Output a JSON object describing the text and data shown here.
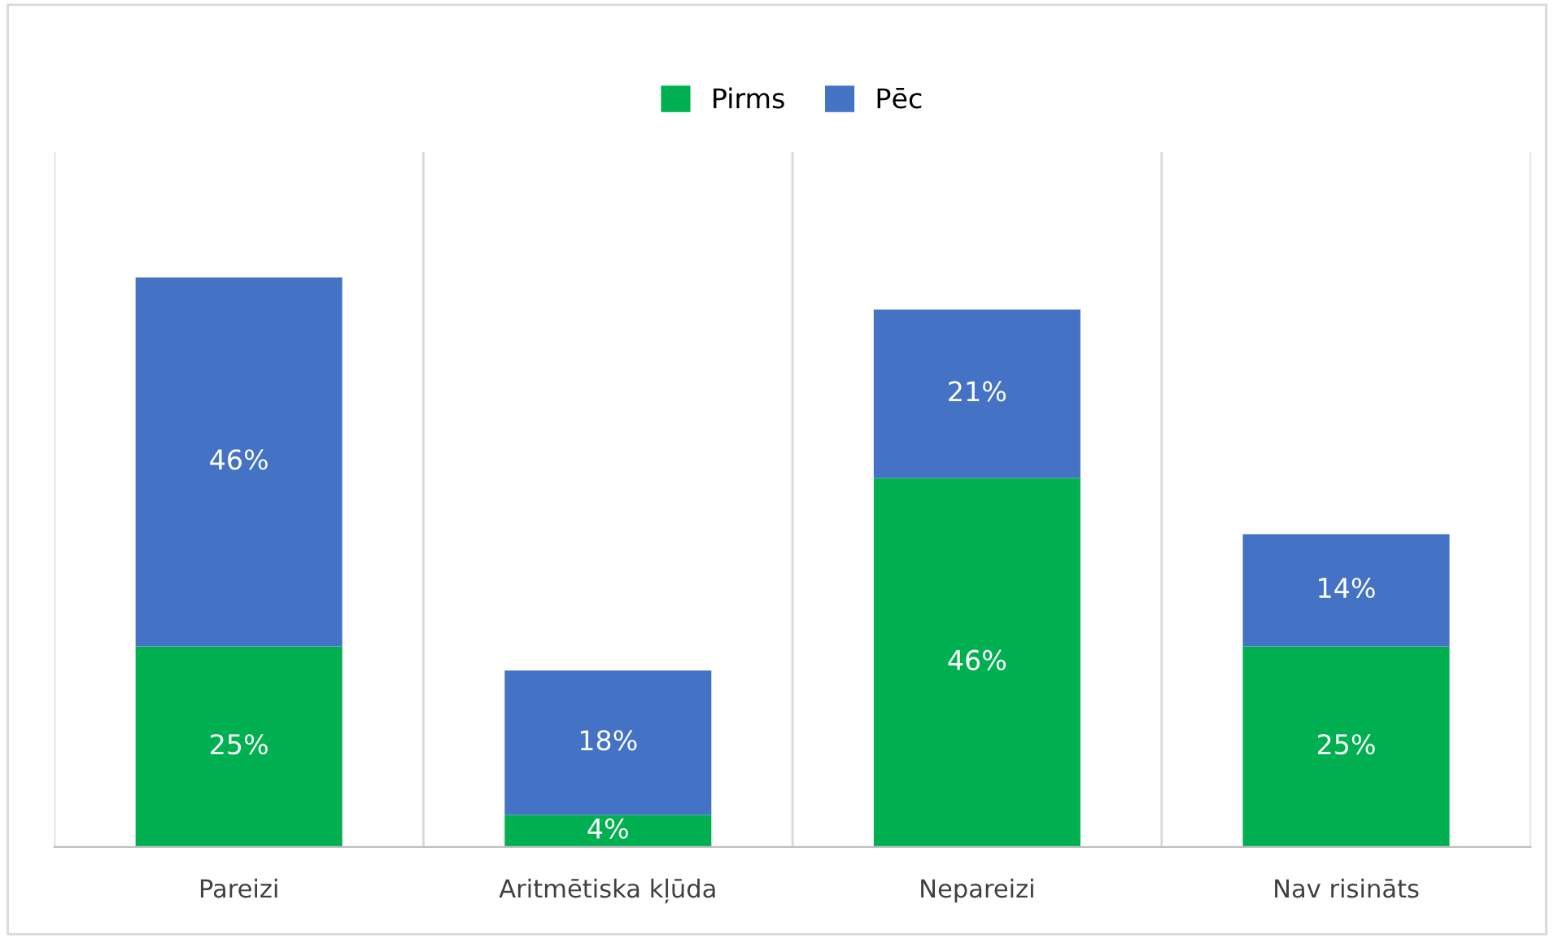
{
  "chart_data": {
    "type": "bar",
    "stacked": true,
    "legend": "top",
    "grid": "x",
    "categories": [
      "Pareizi",
      "Aritmētiska kļūda",
      "Nepareizi",
      "Nav risināts"
    ],
    "series": [
      {
        "name": "Pirms",
        "color": "#00b050",
        "values": [
          25,
          4,
          46,
          25
        ],
        "value_labels": [
          "25%",
          "4%",
          "46%",
          "25%"
        ]
      },
      {
        "name": "Pēc",
        "color": "#4472c4",
        "values": [
          46,
          18,
          21,
          14
        ],
        "value_labels": [
          "46%",
          "18%",
          "21%",
          "14%"
        ]
      }
    ]
  }
}
